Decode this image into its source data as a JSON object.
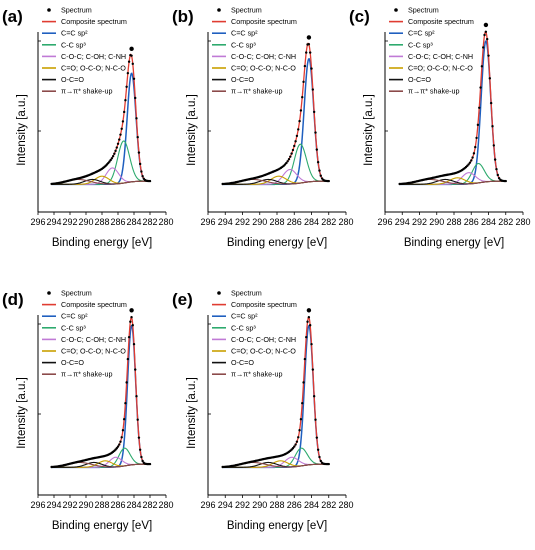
{
  "chart_data": [
    {
      "type": "line",
      "panel_label": "(a)",
      "xlabel": "Binding energy [eV]",
      "ylabel": "Intensity [a.u.]",
      "xlim": [
        296,
        280
      ],
      "x_reversed": true,
      "x_ticks": [
        296,
        294,
        292,
        290,
        288,
        286,
        284,
        282,
        280
      ],
      "y_ticks_labeled": false,
      "legend": [
        "Spectrum",
        "Composite spectrum",
        "C=C sp²",
        "C-C sp³",
        "C-O-C; C-OH; C-NH",
        "C=O; O-C-O; N-C-O",
        "O-C=O",
        "π→π* shake-up"
      ],
      "components": [
        {
          "name": "C=C sp²",
          "center": 284.3,
          "height": 0.67,
          "width": 0.55
        },
        {
          "name": "C-C sp³",
          "center": 285.3,
          "height": 0.26,
          "width": 0.75
        },
        {
          "name": "C-O-C; C-OH; C-NH",
          "center": 286.7,
          "height": 0.1,
          "width": 0.8
        },
        {
          "name": "C=O; O-C-O; N-C-O",
          "center": 288.0,
          "height": 0.05,
          "width": 0.9
        },
        {
          "name": "O-C=O",
          "center": 289.2,
          "height": 0.03,
          "width": 1.0
        },
        {
          "name": "π→π* shake-up",
          "center": 291.0,
          "height": 0.03,
          "width": 1.5
        }
      ]
    },
    {
      "type": "line",
      "panel_label": "(b)",
      "xlabel": "Binding energy [eV]",
      "ylabel": "Intensity [a.u.]",
      "xlim": [
        296,
        280
      ],
      "x_reversed": true,
      "x_ticks": [
        296,
        294,
        292,
        290,
        288,
        286,
        284,
        282,
        280
      ],
      "y_ticks_labeled": false,
      "legend": [
        "Spectrum",
        "Composite spectrum",
        "C=C sp²",
        "C-C sp³",
        "C-O-C; C-OH; C-NH",
        "C=O; O-C-O; N-C-O",
        "O-C=O",
        "π→π* shake-up"
      ],
      "components": [
        {
          "name": "C=C sp²",
          "center": 284.3,
          "height": 0.76,
          "width": 0.55
        },
        {
          "name": "C-C sp³",
          "center": 285.3,
          "height": 0.24,
          "width": 0.7
        },
        {
          "name": "C-O-C; C-OH; C-NH",
          "center": 286.5,
          "height": 0.09,
          "width": 0.8
        },
        {
          "name": "C=O; O-C-O; N-C-O",
          "center": 287.8,
          "height": 0.05,
          "width": 0.9
        },
        {
          "name": "O-C=O",
          "center": 289.0,
          "height": 0.03,
          "width": 1.0
        },
        {
          "name": "π→π* shake-up",
          "center": 290.8,
          "height": 0.03,
          "width": 1.5
        }
      ]
    },
    {
      "type": "line",
      "panel_label": "(c)",
      "xlabel": "Binding energy [eV]",
      "ylabel": "Intensity [a.u.]",
      "xlim": [
        296,
        280
      ],
      "x_reversed": true,
      "x_ticks": [
        296,
        294,
        292,
        290,
        288,
        286,
        284,
        282,
        280
      ],
      "y_ticks_labeled": false,
      "legend": [
        "Spectrum",
        "Composite spectrum",
        "C=C sp²",
        "C-C sp³",
        "C-O-C; C-OH; C-NH",
        "C=O; O-C-O; N-C-O",
        "O-C=O",
        "π→π* shake-up"
      ],
      "components": [
        {
          "name": "C=C sp²",
          "center": 284.3,
          "height": 0.87,
          "width": 0.55
        },
        {
          "name": "C-C sp³",
          "center": 285.2,
          "height": 0.12,
          "width": 0.7
        },
        {
          "name": "C-O-C; C-OH; C-NH",
          "center": 286.3,
          "height": 0.07,
          "width": 0.8
        },
        {
          "name": "C=O; O-C-O; N-C-O",
          "center": 287.6,
          "height": 0.04,
          "width": 0.9
        },
        {
          "name": "O-C=O",
          "center": 289.0,
          "height": 0.03,
          "width": 1.0
        },
        {
          "name": "π→π* shake-up",
          "center": 290.8,
          "height": 0.03,
          "width": 1.5
        }
      ]
    },
    {
      "type": "line",
      "panel_label": "(d)",
      "xlabel": "Binding energy [eV]",
      "ylabel": "Intensity [a.u.]",
      "xlim": [
        296,
        280
      ],
      "x_reversed": true,
      "x_ticks": [
        296,
        294,
        292,
        290,
        288,
        286,
        284,
        282,
        280
      ],
      "y_ticks_labeled": false,
      "legend": [
        "Spectrum",
        "Composite spectrum",
        "C=C sp²",
        "C-C sp³",
        "C-O-C; C-OH; C-NH",
        "C=O; O-C-O; N-C-O",
        "O-C=O",
        "π→π* shake-up"
      ],
      "components": [
        {
          "name": "C=C sp²",
          "center": 284.3,
          "height": 0.86,
          "width": 0.5
        },
        {
          "name": "C-C sp³",
          "center": 285.2,
          "height": 0.11,
          "width": 0.7
        },
        {
          "name": "C-O-C; C-OH; C-NH",
          "center": 286.3,
          "height": 0.06,
          "width": 0.8
        },
        {
          "name": "C=O; O-C-O; N-C-O",
          "center": 287.6,
          "height": 0.04,
          "width": 0.9
        },
        {
          "name": "O-C=O",
          "center": 289.0,
          "height": 0.03,
          "width": 1.0
        },
        {
          "name": "π→π* shake-up",
          "center": 290.8,
          "height": 0.03,
          "width": 1.5
        }
      ]
    },
    {
      "type": "line",
      "panel_label": "(e)",
      "xlabel": "Binding energy [eV]",
      "ylabel": "Intensity [a.u.]",
      "xlim": [
        296,
        280
      ],
      "x_reversed": true,
      "x_ticks": [
        296,
        294,
        292,
        290,
        288,
        286,
        284,
        282,
        280
      ],
      "y_ticks_labeled": false,
      "legend": [
        "Spectrum",
        "Composite spectrum",
        "C=C sp²",
        "C-C sp³",
        "C-O-C; C-OH; C-NH",
        "C=O; O-C-O; N-C-O",
        "O-C=O",
        "π→π* shake-up"
      ],
      "components": [
        {
          "name": "C=C sp²",
          "center": 284.3,
          "height": 0.86,
          "width": 0.5
        },
        {
          "name": "C-C sp³",
          "center": 285.2,
          "height": 0.11,
          "width": 0.7
        },
        {
          "name": "C-O-C; C-OH; C-NH",
          "center": 286.3,
          "height": 0.06,
          "width": 0.8
        },
        {
          "name": "C=O; O-C-O; N-C-O",
          "center": 287.6,
          "height": 0.04,
          "width": 0.9
        },
        {
          "name": "O-C=O",
          "center": 289.0,
          "height": 0.03,
          "width": 1.0
        },
        {
          "name": "π→π* shake-up",
          "center": 290.8,
          "height": 0.03,
          "width": 1.5
        }
      ]
    }
  ],
  "colors": {
    "spectrum": "#000000",
    "composite": "#e03c31",
    "c_c_sp2": "#1f5fbf",
    "c_c_sp3": "#2eaa6e",
    "c_o_c": "#c07ad6",
    "c_eq_o": "#c9a000",
    "o_c_eq_o": "#111111",
    "shake_up": "#8b4a4a"
  }
}
